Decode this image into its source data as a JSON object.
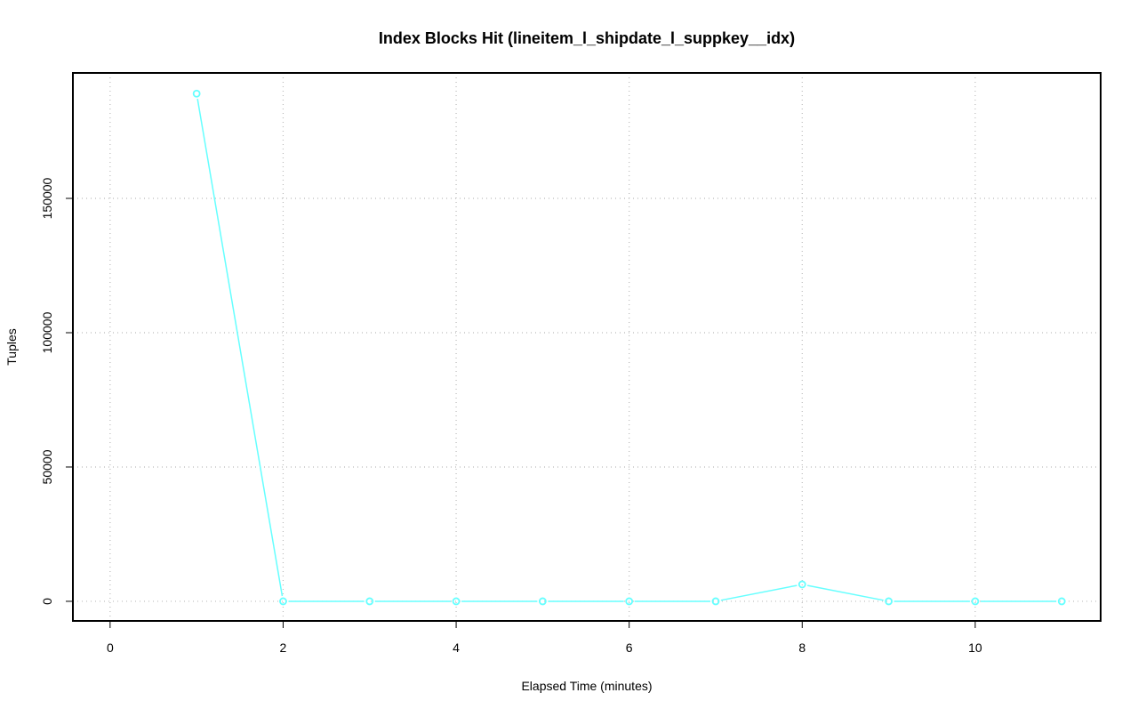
{
  "chart_data": {
    "type": "line",
    "title": "Index Blocks Hit (lineitem_l_shipdate_l_suppkey__idx)",
    "xlabel": "Elapsed Time (minutes)",
    "ylabel": "Tuples",
    "xlim": [
      -0.43,
      11.45
    ],
    "ylim": [
      -7300,
      196700
    ],
    "xticks": [
      0,
      2,
      4,
      6,
      8,
      10
    ],
    "yticks": [
      0,
      50000,
      100000,
      150000
    ],
    "xtick_labels": [
      "0",
      "2",
      "4",
      "6",
      "8",
      "10"
    ],
    "ytick_labels": [
      "0",
      "50000",
      "100000",
      "150000"
    ],
    "grid": true,
    "series": [
      {
        "color": "#66ffff",
        "marker": "open-circle",
        "x": [
          1,
          2,
          3,
          4,
          5,
          6,
          7,
          8,
          9,
          10,
          11
        ],
        "y": [
          189000,
          0,
          0,
          0,
          0,
          0,
          0,
          6300,
          0,
          0,
          0
        ]
      }
    ]
  }
}
